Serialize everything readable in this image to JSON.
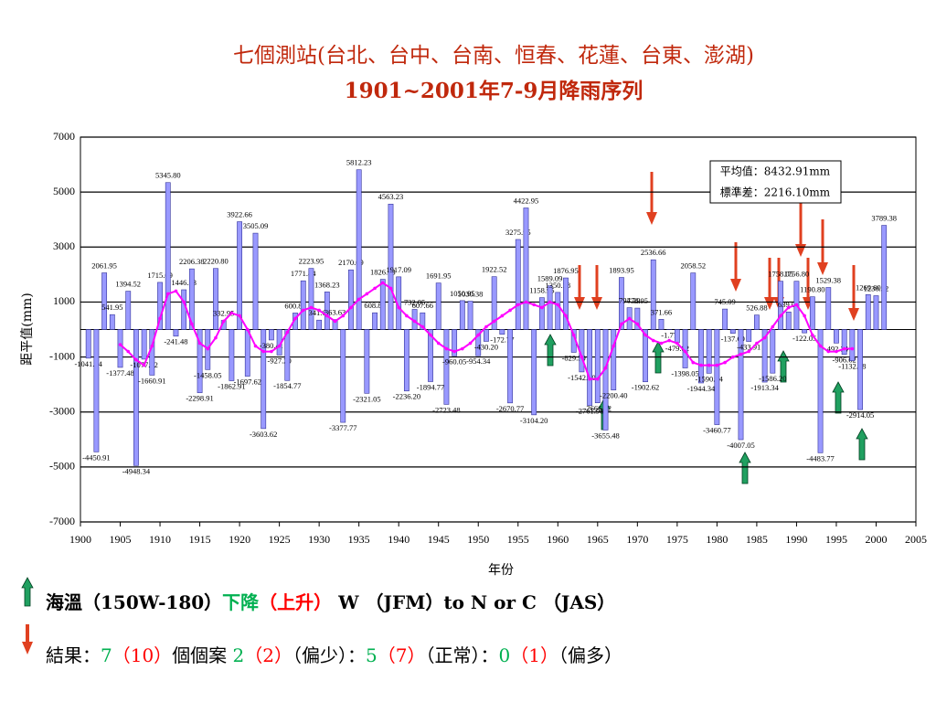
{
  "title": [
    "七個測站(台北、台中、台南、恒春、花蓮、台東、澎湖)",
    "1901~2001年7-9月降雨序列"
  ],
  "chart_data": {
    "type": "bar",
    "xlabel": "年份",
    "ylabel": "距平值(mm)",
    "xlim": [
      1900,
      2005
    ],
    "xticks": [
      1900,
      1905,
      1910,
      1915,
      1920,
      1925,
      1930,
      1935,
      1940,
      1945,
      1950,
      1955,
      1960,
      1965,
      1970,
      1975,
      1980,
      1985,
      1990,
      1995,
      2000,
      2005
    ],
    "ylim": [
      -7000,
      7000
    ],
    "yticks": [
      -7000,
      -5000,
      -3000,
      -1000,
      1000,
      3000,
      5000,
      7000
    ],
    "grid": true,
    "x": [
      1901,
      1902,
      1903,
      1904,
      1905,
      1906,
      1907,
      1908,
      1909,
      1910,
      1911,
      1912,
      1913,
      1914,
      1915,
      1916,
      1917,
      1918,
      1919,
      1920,
      1921,
      1922,
      1923,
      1924,
      1925,
      1926,
      1927,
      1928,
      1929,
      1930,
      1931,
      1932,
      1933,
      1934,
      1935,
      1936,
      1937,
      1938,
      1939,
      1940,
      1941,
      1942,
      1943,
      1944,
      1945,
      1946,
      1947,
      1948,
      1949,
      1950,
      1951,
      1952,
      1953,
      1954,
      1955,
      1956,
      1957,
      1958,
      1959,
      1960,
      1961,
      1962,
      1963,
      1964,
      1965,
      1966,
      1967,
      1968,
      1969,
      1970,
      1971,
      1972,
      1973,
      1974,
      1975,
      1976,
      1977,
      1978,
      1979,
      1980,
      1981,
      1982,
      1983,
      1984,
      1985,
      1986,
      1987,
      1988,
      1989,
      1990,
      1991,
      1992,
      1993,
      1994,
      1995,
      1996,
      1997,
      1998,
      1999,
      2000,
      2001
    ],
    "series": [
      {
        "type": "bar",
        "color": "#9999ff",
        "edge": "#333399",
        "values": [
          -1041.34,
          -4450.91,
          2061.95,
          541.95,
          -1377.48,
          1394.52,
          -4948.34,
          -1077.82,
          -1660.91,
          1715.09,
          5345.8,
          -241.48,
          1446.23,
          2206.38,
          -2298.91,
          -1458.05,
          2220.8,
          332.95,
          -1862.91,
          3922.66,
          -1697.62,
          3505.09,
          -3603.62,
          -380.41,
          -927.2,
          -1854.77,
          600.8,
          1771.84,
          2223.95,
          341.63,
          1368.23,
          363.63,
          -3377.77,
          2170.09,
          5812.23,
          -2321.05,
          608.8,
          1826.83,
          4563.23,
          1917.09,
          -2236.2,
          732.05,
          607.66,
          -1894.77,
          1691.95,
          -2723.48,
          -960.05,
          1050.95,
          1030.38,
          -954.34,
          -430.2,
          1922.52,
          -172.77,
          -2670.77,
          3275.95,
          4422.95,
          -3104.2,
          1158.95,
          1589.09,
          1350.38,
          1876.95,
          -829.5,
          -1542.5,
          -2761.98,
          -2666.82,
          -3655.48,
          -2200.4,
          1893.95,
          794.29,
          778.95,
          -1902.62,
          2536.66,
          371.66,
          -1.77,
          -479.82,
          -1398.05,
          2058.52,
          -1944.34,
          -1590.34,
          -3460.77,
          745.09,
          -137.69,
          -4007.05,
          -433.91,
          526.88,
          -1913.34,
          -1586.2,
          1758.05,
          639.05,
          1756.8,
          -122.05,
          1190.8,
          -4483.77,
          1529.38,
          -492.34,
          -906.62,
          -1132.48,
          -2914.05,
          1269.6,
          1230.52,
          3789.38
        ],
        "value_labels": [
          "-1041.34",
          "-4450.91",
          "2061.95",
          "541.95",
          "-1377.48",
          "1394.52",
          "-4948.34",
          "-1077.82",
          "-1660.91",
          "1715.09",
          "5345.80",
          "-241.48",
          "1446.23",
          "2206.38",
          "-2298.91",
          "-1458.05",
          "2220.80",
          "332.95",
          "-1862.91",
          "3922.66",
          "-1697.62",
          "3505.09",
          "-3603.62",
          "-380.41",
          "-927.20",
          "-1854.77",
          "600.80",
          "1771.84",
          "2223.95",
          "341.63",
          "1368.23",
          "363.63",
          "-3377.77",
          "2170.09",
          "5812.23",
          "-2321.05",
          "608.80",
          "1826.83",
          "4563.23",
          "1917.09",
          "-2236.20",
          "732.05",
          "607.66",
          "-1894.77",
          "1691.95",
          "-2723.48",
          "-960.05",
          "1050.95",
          "1030.38",
          "-954.34",
          "-430.20",
          "1922.52",
          "-172.77",
          "-2670.77",
          "3275.95",
          "4422.95",
          "-3104.20",
          "1158.95",
          "1589.09",
          "1350.38",
          "1876.95",
          "-829.50",
          "-1542.50",
          "-2761.98",
          "-2666.82",
          "-3655.48",
          "-2200.40",
          "1893.95",
          "794.29",
          "778.95",
          "-1902.62",
          "2536.66",
          "371.66",
          "-1.77",
          "-479.82",
          "-1398.05",
          "2058.52",
          "-1944.34",
          "-1590.34",
          "-3460.77",
          "745.09",
          "-137.69",
          "-4007.05",
          "-433.91",
          "526.88",
          "-1913.34",
          "-1586.20",
          "1758.05",
          "639.05",
          "1756.80",
          "-122.05",
          "1190.80",
          "-4483.77",
          "1529.38",
          "-492.34",
          "-906.62",
          "-1132.48",
          "-2914.05",
          "1269.60",
          "1230.52",
          "3789.38"
        ]
      },
      {
        "type": "line",
        "color": "#ff00ff",
        "values": [
          null,
          null,
          null,
          null,
          -550,
          -800,
          -1100,
          -1300,
          -600,
          400,
          1300,
          1400,
          1000,
          200,
          -500,
          -700,
          -300,
          300,
          600,
          500,
          0,
          -600,
          -800,
          -800,
          -600,
          -100,
          400,
          700,
          800,
          700,
          500,
          300,
          500,
          800,
          1100,
          1300,
          1500,
          1700,
          1500,
          800,
          500,
          300,
          100,
          -200,
          -500,
          -700,
          -800,
          -700,
          -500,
          -200,
          100,
          300,
          500,
          700,
          900,
          1000,
          900,
          800,
          1000,
          900,
          500,
          -200,
          -1000,
          -1800,
          -1800,
          -1400,
          -600,
          200,
          400,
          200,
          -200,
          -400,
          -500,
          -400,
          -500,
          -800,
          -1200,
          -1300,
          -1300,
          -1300,
          -1200,
          -1000,
          -900,
          -800,
          -500,
          -300,
          100,
          500,
          800,
          900,
          500,
          -200,
          -600,
          -800,
          -800,
          -700,
          -700,
          null,
          null,
          null,
          null
        ]
      }
    ]
  },
  "stats": [
    "平均值：8432.91mm",
    "標準差：2216.10mm"
  ],
  "legend": [
    [
      {
        "text": "海溫（",
        "color": "#000000"
      },
      {
        "text": "150W-180",
        "color": "#000000"
      },
      {
        "text": "）",
        "color": "#000000"
      },
      {
        "text": "下降",
        "color": "#00b050"
      },
      {
        "text": "（上升）",
        "color": "#ff0000"
      },
      {
        "text": " W （JFM）to  N or C （JAS）",
        "color": "#000000"
      }
    ],
    [
      {
        "text": "結果：",
        "color": "#000000"
      },
      {
        "text": "7",
        "color": "#00b050"
      },
      {
        "text": "（10）",
        "color": "#ff0000"
      },
      {
        "text": "個個案 ",
        "color": "#000000"
      },
      {
        "text": "2",
        "color": "#00b050"
      },
      {
        "text": "（2）",
        "color": "#ff0000"
      },
      {
        "text": "（偏少）：",
        "color": "#000000"
      },
      {
        "text": "5",
        "color": "#00b050"
      },
      {
        "text": "（7）",
        "color": "#ff0000"
      },
      {
        "text": "（正常）：",
        "color": "#000000"
      },
      {
        "text": "0",
        "color": "#00b050"
      },
      {
        "text": "（1）",
        "color": "#ff0000"
      },
      {
        "text": "（偏多）",
        "color": "#000000"
      }
    ]
  ]
}
